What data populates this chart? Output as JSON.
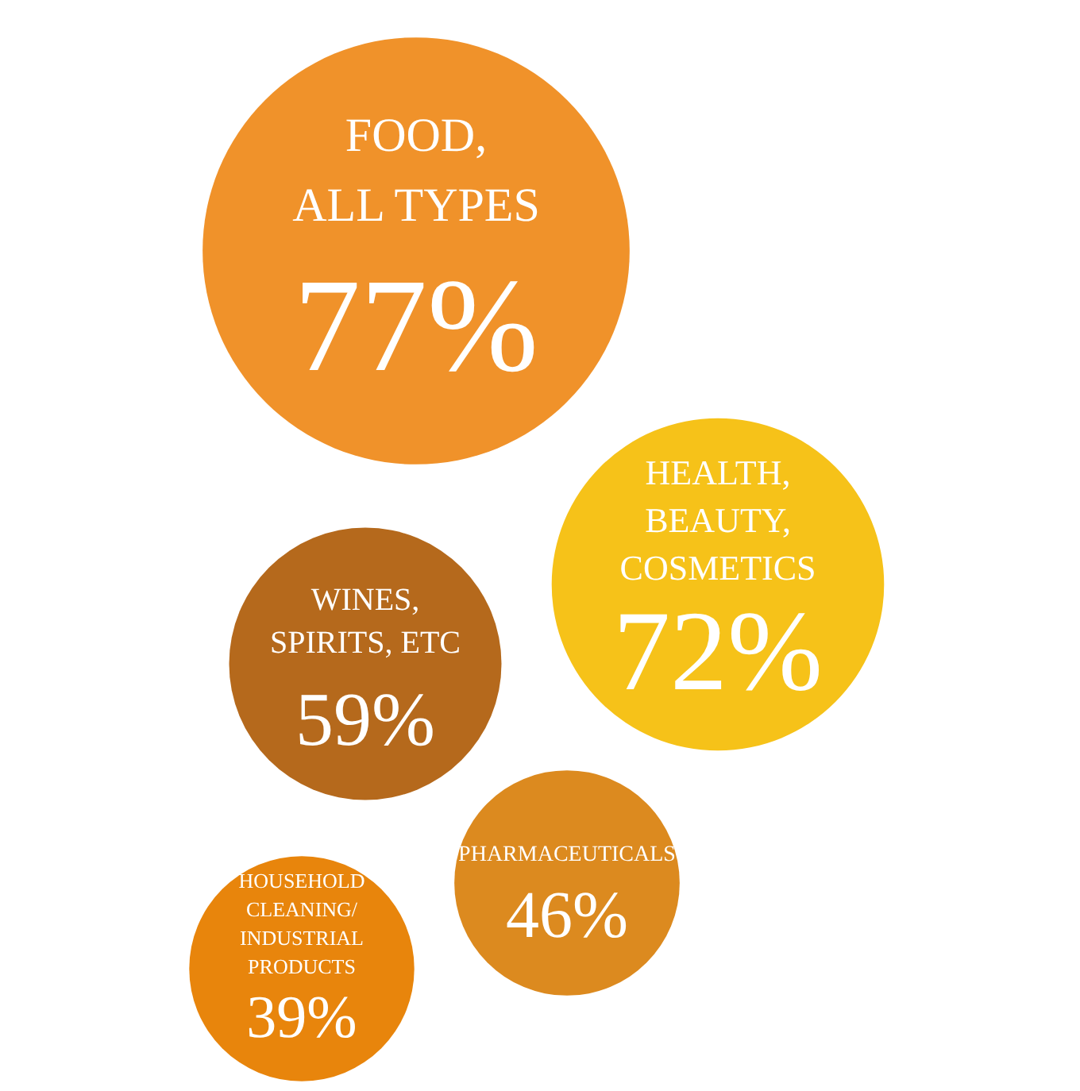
{
  "chart_data": {
    "type": "other",
    "categories": [
      "FOOD, ALL TYPES",
      "HEALTH, BEAUTY, COSMETICS",
      "WINES, SPIRITS, ETC",
      "PHARMACEUTICALS",
      "HOUSEHOLD CLEANING/ INDUSTRIAL PRODUCTS"
    ],
    "values": [
      77,
      72,
      59,
      46,
      39
    ],
    "value_labels": [
      "77%",
      "72%",
      "59%",
      "46%",
      "39%"
    ],
    "colors": [
      "#f0922a",
      "#f6c219",
      "#b5691c",
      "#dc8a1f",
      "#e8850c"
    ]
  }
}
